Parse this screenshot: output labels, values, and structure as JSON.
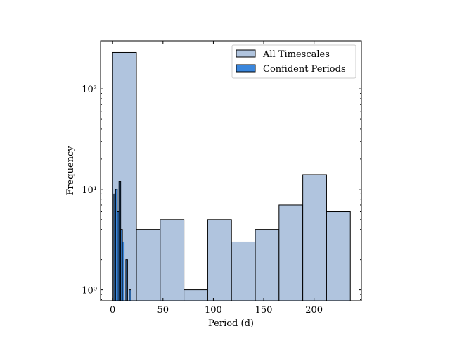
{
  "chart_data": {
    "type": "bar",
    "xlabel": "Period (d)",
    "ylabel": "Frequency",
    "xlim": [
      -12,
      247
    ],
    "ylim": [
      0.78,
      300
    ],
    "yscale": "log",
    "grid": false,
    "legend_position": "top-right",
    "x_ticks": [
      0,
      50,
      100,
      150,
      200
    ],
    "y_ticks": [
      1,
      10,
      100
    ],
    "y_tick_labels": [
      "10⁰",
      "10¹",
      "10²"
    ],
    "series": [
      {
        "name": "All Timescales",
        "color": "#b0c4de",
        "bins": [
          {
            "x0": 0.0,
            "x1": 23.6,
            "value": 230
          },
          {
            "x0": 23.6,
            "x1": 47.2,
            "value": 4
          },
          {
            "x0": 47.2,
            "x1": 70.8,
            "value": 5
          },
          {
            "x0": 70.8,
            "x1": 94.4,
            "value": 1
          },
          {
            "x0": 94.4,
            "x1": 118.0,
            "value": 5
          },
          {
            "x0": 118.0,
            "x1": 141.6,
            "value": 3
          },
          {
            "x0": 141.6,
            "x1": 165.2,
            "value": 4
          },
          {
            "x0": 165.2,
            "x1": 188.8,
            "value": 7
          },
          {
            "x0": 188.8,
            "x1": 212.4,
            "value": 14
          },
          {
            "x0": 212.4,
            "x1": 236.0,
            "value": 6
          }
        ]
      },
      {
        "name": "Confident Periods",
        "color": "#3a86dc",
        "bins": [
          {
            "x0": 1.2,
            "x1": 2.9,
            "value": 9
          },
          {
            "x0": 2.9,
            "x1": 4.6,
            "value": 10
          },
          {
            "x0": 4.6,
            "x1": 6.3,
            "value": 6
          },
          {
            "x0": 6.3,
            "x1": 8.0,
            "value": 12
          },
          {
            "x0": 8.0,
            "x1": 9.7,
            "value": 4
          },
          {
            "x0": 9.7,
            "x1": 11.4,
            "value": 3
          },
          {
            "x0": 13.1,
            "x1": 14.8,
            "value": 2
          },
          {
            "x0": 16.5,
            "x1": 18.2,
            "value": 1
          }
        ]
      }
    ]
  }
}
